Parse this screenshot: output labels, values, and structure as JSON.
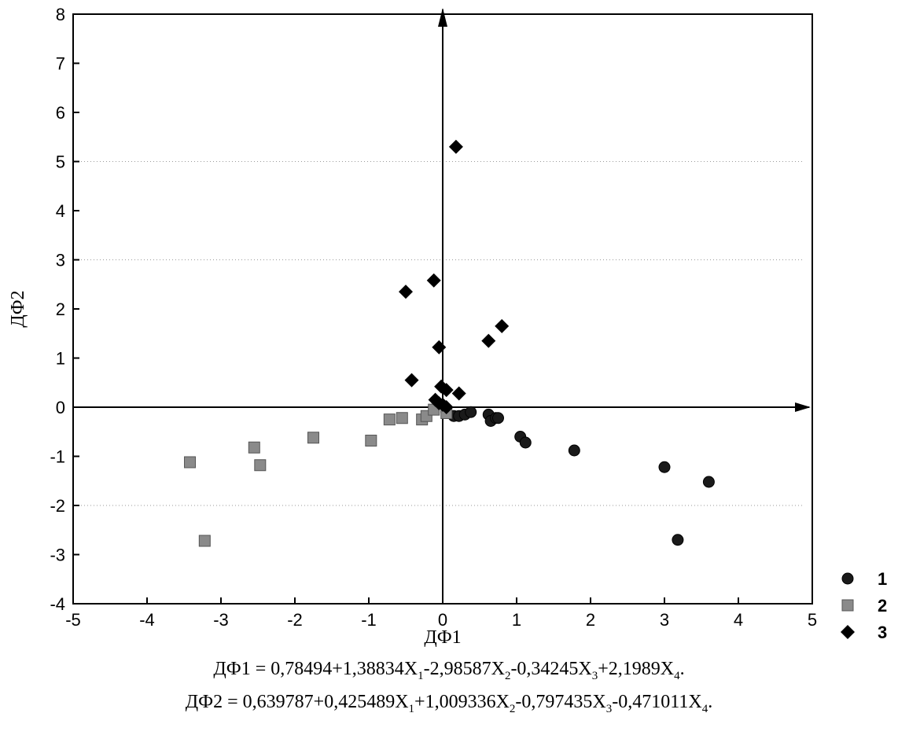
{
  "chart_data": {
    "type": "scatter",
    "xlabel": "ДФ1",
    "ylabel": "ДФ2",
    "xlim": [
      -5,
      5
    ],
    "ylim": [
      -4,
      8
    ],
    "xticks": [
      "-5",
      "-4",
      "-3",
      "-2",
      "-1",
      "0",
      "1",
      "2",
      "3",
      "4",
      "5"
    ],
    "yticks": [
      "-4",
      "-3",
      "-2",
      "-1",
      "0",
      "1",
      "2",
      "3",
      "4",
      "5",
      "6",
      "7",
      "8"
    ],
    "grid": false,
    "legend_position": "bottom-right",
    "series": [
      {
        "name": "1",
        "marker": "circle",
        "color": "#1a1a1a",
        "points": [
          [
            0.05,
            -0.1
          ],
          [
            0.15,
            -0.18
          ],
          [
            0.22,
            -0.18
          ],
          [
            0.3,
            -0.15
          ],
          [
            0.38,
            -0.1
          ],
          [
            0.62,
            -0.15
          ],
          [
            0.65,
            -0.28
          ],
          [
            0.72,
            -0.22
          ],
          [
            0.75,
            -0.22
          ],
          [
            1.05,
            -0.6
          ],
          [
            1.12,
            -0.72
          ],
          [
            1.78,
            -0.88
          ],
          [
            3.0,
            -1.22
          ],
          [
            3.6,
            -1.52
          ],
          [
            3.18,
            -2.7
          ]
        ]
      },
      {
        "name": "2",
        "marker": "square",
        "color": "#8a8a8a",
        "points": [
          [
            -3.42,
            -1.12
          ],
          [
            -3.22,
            -2.72
          ],
          [
            -2.55,
            -0.82
          ],
          [
            -2.47,
            -1.18
          ],
          [
            -1.75,
            -0.62
          ],
          [
            -0.97,
            -0.68
          ],
          [
            -0.72,
            -0.25
          ],
          [
            -0.55,
            -0.22
          ],
          [
            -0.28,
            -0.25
          ],
          [
            -0.22,
            -0.18
          ],
          [
            -0.12,
            -0.05
          ],
          [
            0.05,
            -0.12
          ]
        ]
      },
      {
        "name": "3",
        "marker": "diamond",
        "color": "#000000",
        "points": [
          [
            0.18,
            5.3
          ],
          [
            -0.12,
            2.58
          ],
          [
            -0.5,
            2.35
          ],
          [
            -0.05,
            1.22
          ],
          [
            0.62,
            1.35
          ],
          [
            0.8,
            1.65
          ],
          [
            -0.42,
            0.55
          ],
          [
            -0.02,
            0.42
          ],
          [
            0.05,
            0.35
          ],
          [
            0.22,
            0.28
          ],
          [
            -0.1,
            0.15
          ],
          [
            -0.05,
            0.08
          ],
          [
            0.0,
            0.05
          ],
          [
            0.05,
            0.0
          ]
        ]
      }
    ]
  },
  "equations": [
    {
      "lhs": "ДФ1 = ",
      "parts": [
        "0,78494+1,38834X",
        "1",
        "-2,98587X",
        "2",
        "-0,34245X",
        "3",
        "+2,1989X",
        "4",
        "."
      ]
    },
    {
      "lhs": "ДФ2 = ",
      "parts": [
        "0,639787+0,425489X",
        "1",
        "+1,009336X",
        "2",
        "-0,797435X",
        "3",
        "-0,471011X",
        "4",
        "."
      ]
    }
  ]
}
